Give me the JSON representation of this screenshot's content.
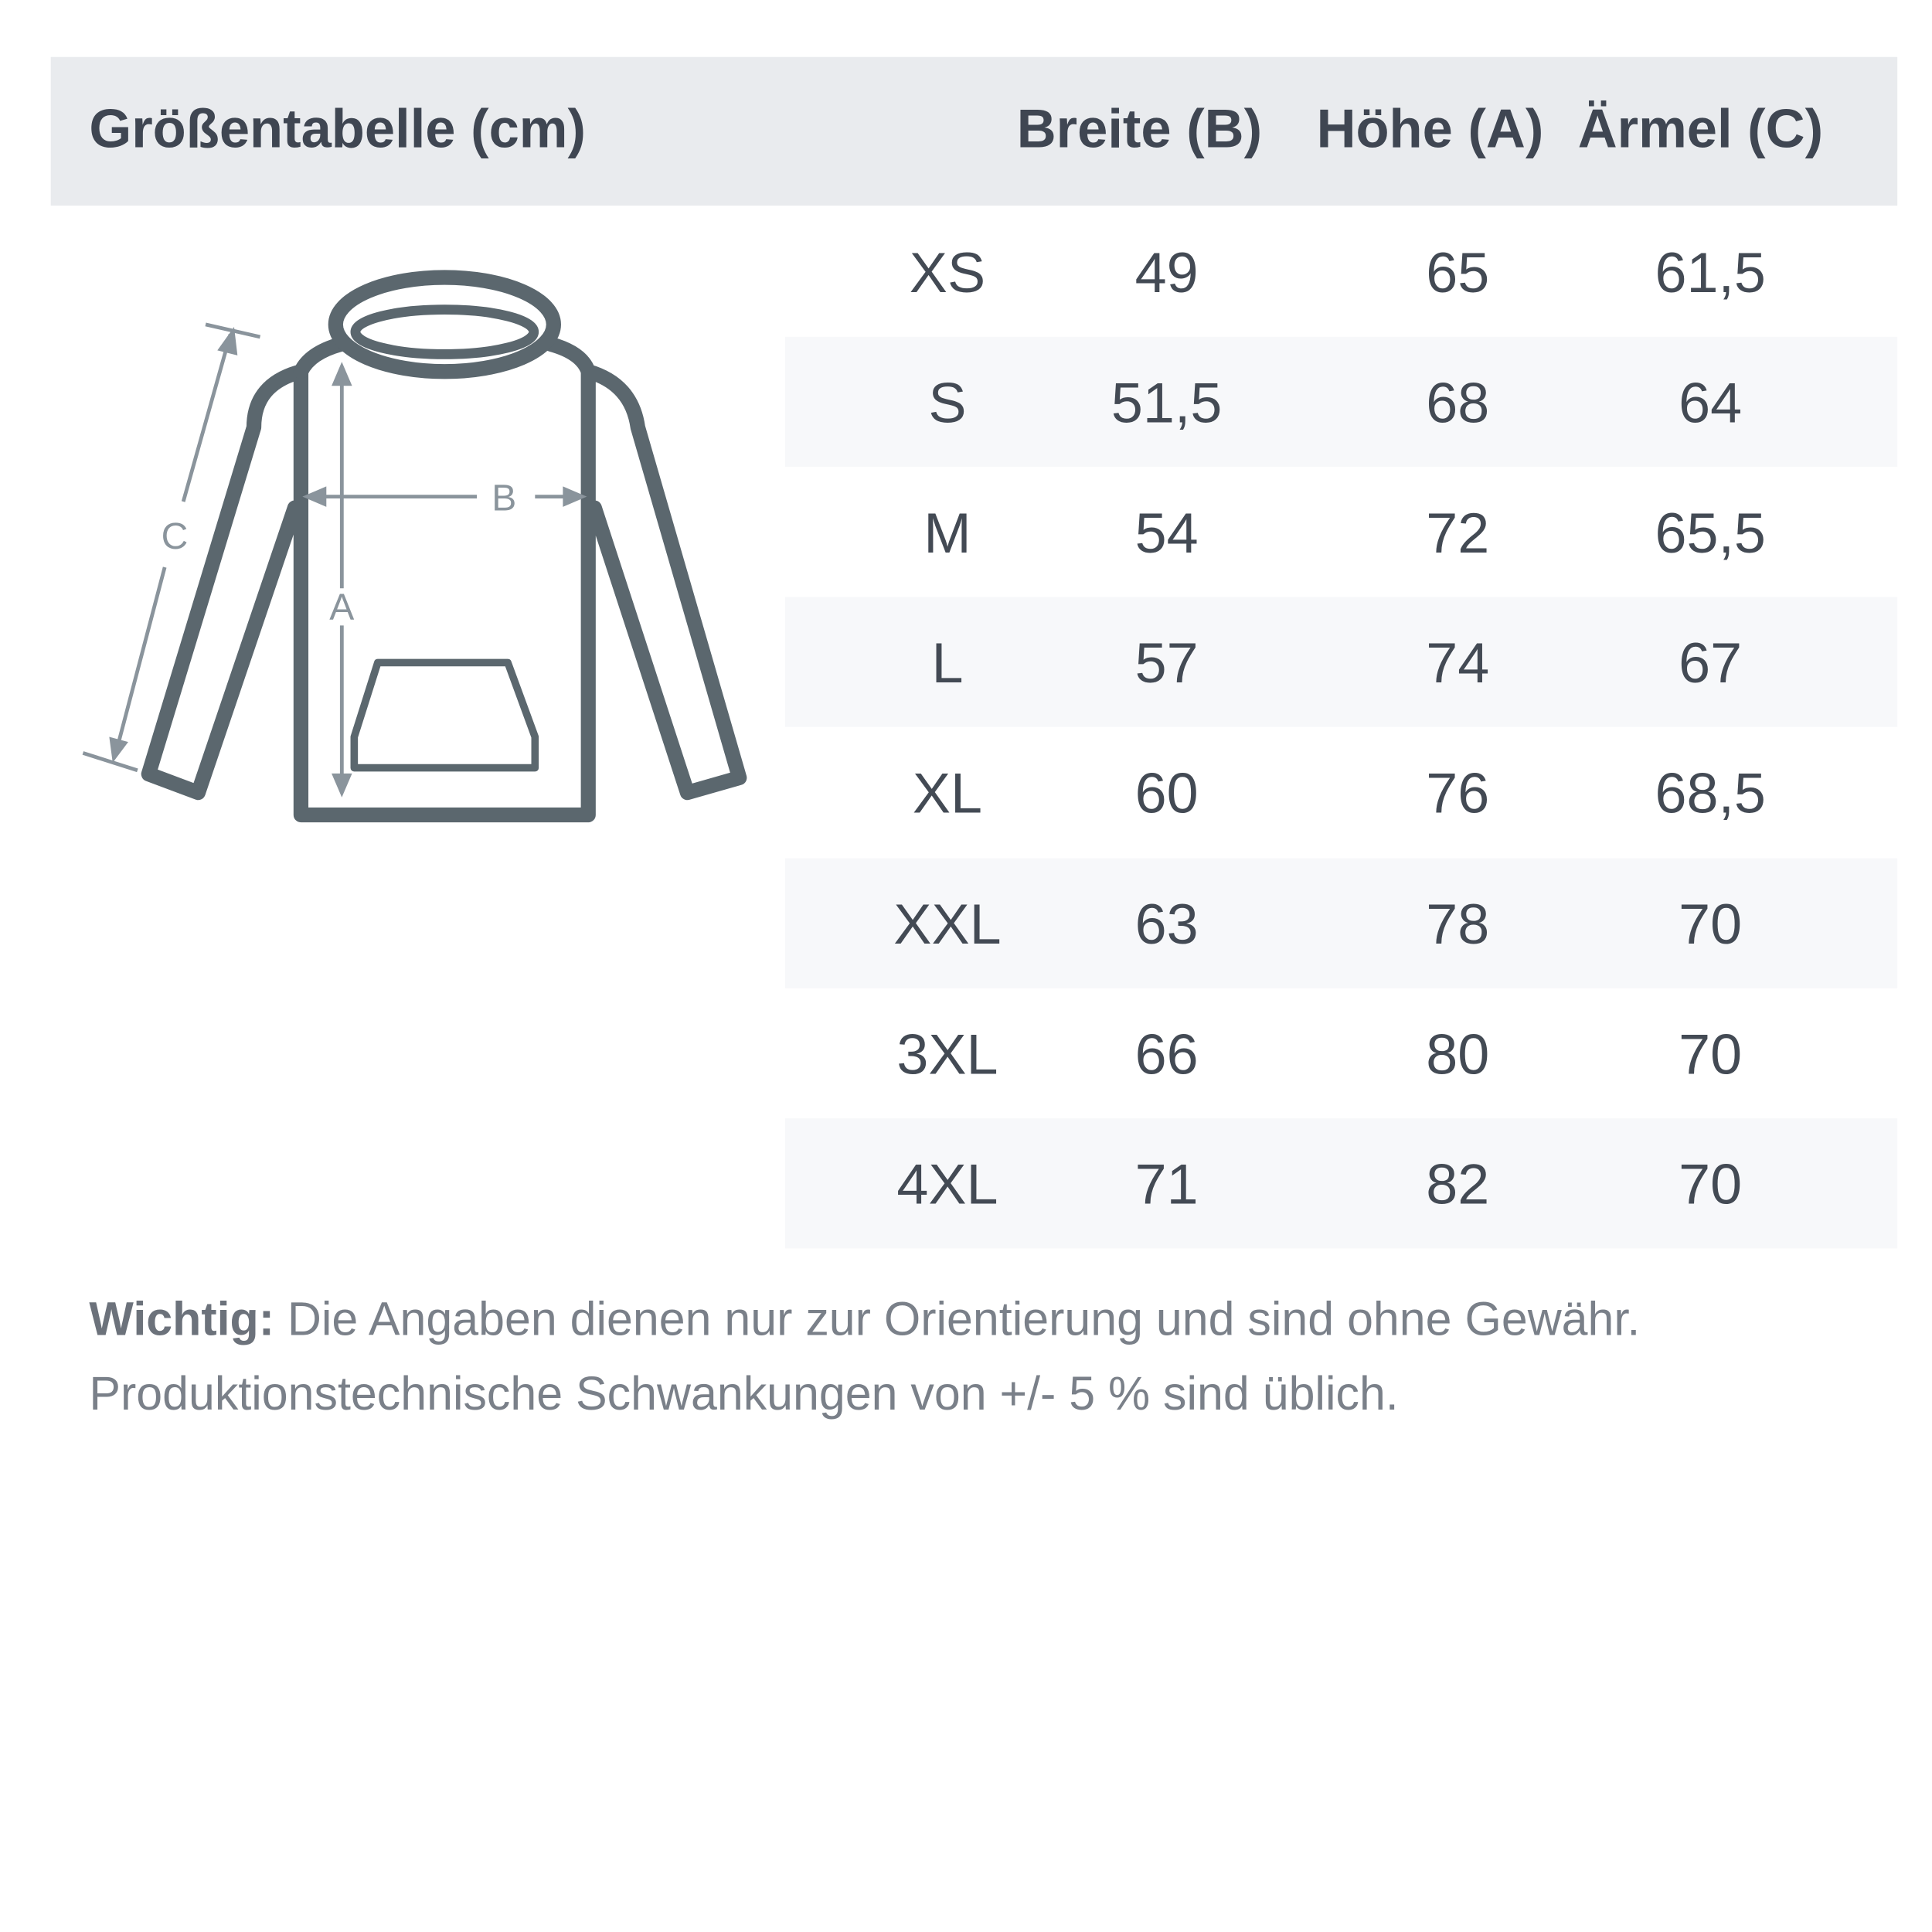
{
  "header": {
    "title": "Größentabelle (cm)",
    "columns": [
      "Breite (B)",
      "Höhe (A)",
      "Ärmel (C)"
    ]
  },
  "diagram": {
    "labels": {
      "a": "A",
      "b": "B",
      "c": "C"
    }
  },
  "rows": [
    {
      "size": "XS",
      "breite": "49",
      "hoehe": "65",
      "aermel": "61,5"
    },
    {
      "size": "S",
      "breite": "51,5",
      "hoehe": "68",
      "aermel": "64"
    },
    {
      "size": "M",
      "breite": "54",
      "hoehe": "72",
      "aermel": "65,5"
    },
    {
      "size": "L",
      "breite": "57",
      "hoehe": "74",
      "aermel": "67"
    },
    {
      "size": "XL",
      "breite": "60",
      "hoehe": "76",
      "aermel": "68,5"
    },
    {
      "size": "XXL",
      "breite": "63",
      "hoehe": "78",
      "aermel": "70"
    },
    {
      "size": "3XL",
      "breite": "66",
      "hoehe": "80",
      "aermel": "70"
    },
    {
      "size": "4XL",
      "breite": "71",
      "hoehe": "82",
      "aermel": "70"
    }
  ],
  "note": {
    "bold": "Wichtig:",
    "line1": " Die Angaben dienen nur zur Orientierung und sind ohne Gewähr.",
    "line2": "Produktionstechnische Schwankungen von +/- 5 % sind üblich."
  },
  "colors": {
    "header_bg": "#e9ebee",
    "text": "#3f4652",
    "stripe": "#f7f8fa",
    "garment": "#5b676e",
    "measure": "#8a949c"
  }
}
